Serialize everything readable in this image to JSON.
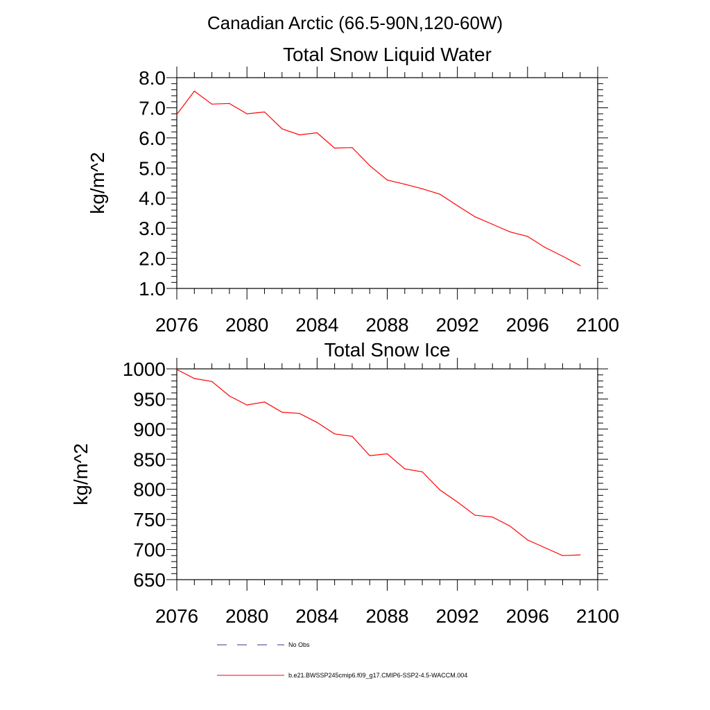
{
  "figure": {
    "title": "Canadian Arctic (66.5-90N,120-60W)"
  },
  "legend": [
    {
      "label": "No Obs",
      "color": "#2e3a87",
      "style": "dashed"
    },
    {
      "label": "b.e21.BWSSP245cmip6.f09_g17.CMIP6-SSP2-4.5-WACCM.004",
      "color": "#ff0000",
      "style": "solid"
    }
  ],
  "chart_data": [
    {
      "type": "line",
      "title": "Total Snow Liquid Water",
      "xlabel": "",
      "ylabel": "kg/m^2",
      "xlim": [
        2076,
        2100
      ],
      "ylim": [
        1.0,
        8.0
      ],
      "xticks": [
        2076,
        2080,
        2084,
        2088,
        2092,
        2096,
        2100
      ],
      "xtick_labels": [
        "2076",
        "2080",
        "2084",
        "2088",
        "2092",
        "2096",
        "2100"
      ],
      "yticks": [
        1,
        2,
        3,
        4,
        5,
        6,
        7,
        8
      ],
      "ytick_labels": [
        "1.0",
        "2.0",
        "3.0",
        "4.0",
        "5.0",
        "6.0",
        "7.0",
        "8.0"
      ],
      "grid": false,
      "series": [
        {
          "name": "b.e21.BWSSP245cmip6.f09_g17.CMIP6-SSP2-4.5-WACCM.004",
          "color": "#ff0000",
          "x": [
            2076,
            2077,
            2078,
            2079,
            2080,
            2081,
            2082,
            2083,
            2084,
            2085,
            2086,
            2087,
            2088,
            2089,
            2090,
            2091,
            2092,
            2093,
            2094,
            2095,
            2096,
            2097,
            2098,
            2099
          ],
          "y": [
            6.78,
            7.55,
            7.12,
            7.14,
            6.8,
            6.86,
            6.3,
            6.1,
            6.17,
            5.66,
            5.68,
            5.08,
            4.6,
            4.46,
            4.31,
            4.13,
            3.75,
            3.38,
            3.13,
            2.88,
            2.73,
            2.36,
            2.07,
            1.76
          ]
        }
      ]
    },
    {
      "type": "line",
      "title": "Total Snow Ice",
      "xlabel": "",
      "ylabel": "kg/m^2",
      "xlim": [
        2076,
        2100
      ],
      "ylim": [
        650,
        1000
      ],
      "xticks": [
        2076,
        2080,
        2084,
        2088,
        2092,
        2096,
        2100
      ],
      "xtick_labels": [
        "2076",
        "2080",
        "2084",
        "2088",
        "2092",
        "2096",
        "2100"
      ],
      "yticks": [
        650,
        700,
        750,
        800,
        850,
        900,
        950,
        1000
      ],
      "ytick_labels": [
        "650",
        "700",
        "750",
        "800",
        "850",
        "900",
        "950",
        "1000"
      ],
      "grid": false,
      "series": [
        {
          "name": "b.e21.BWSSP245cmip6.f09_g17.CMIP6-SSP2-4.5-WACCM.004",
          "color": "#ff0000",
          "x": [
            2076,
            2077,
            2078,
            2079,
            2080,
            2081,
            2082,
            2083,
            2084,
            2085,
            2086,
            2087,
            2088,
            2089,
            2090,
            2091,
            2092,
            2093,
            2094,
            2095,
            2096,
            2097,
            2098,
            2099
          ],
          "y": [
            999,
            984,
            979,
            955,
            940,
            945,
            928,
            926,
            911,
            892,
            888,
            856,
            859,
            834,
            829,
            799,
            779,
            757,
            754,
            739,
            716,
            703,
            690,
            691
          ]
        }
      ]
    }
  ]
}
